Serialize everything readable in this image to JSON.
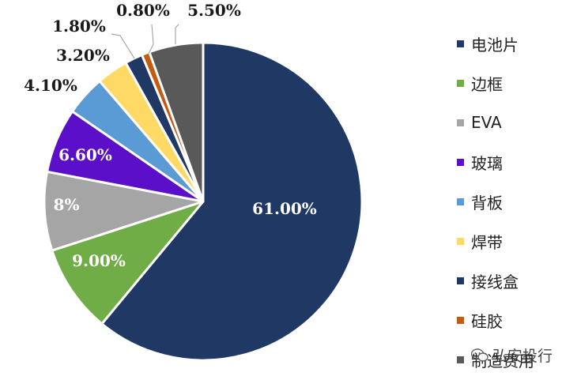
{
  "chart_data": {
    "type": "pie",
    "title": "",
    "categories": [
      "电池片",
      "边框",
      "EVA",
      "玻璃",
      "背板",
      "焊带",
      "接线盒",
      "硅胶",
      "制造费用"
    ],
    "values": [
      61.0,
      9.0,
      8.0,
      6.6,
      4.1,
      3.2,
      1.8,
      0.8,
      5.5
    ],
    "labels": [
      "61.00%",
      "9.00%",
      "8%",
      "6.60%",
      "4.10%",
      "3.20%",
      "1.80%",
      "0.80%",
      "5.50%"
    ],
    "colors": [
      "#1f3864",
      "#70ad47",
      "#a5a5a5",
      "#5b0fc9",
      "#5b9bd5",
      "#ffd966",
      "#203864",
      "#c55a11",
      "#595959"
    ],
    "start_angle_deg": 0,
    "direction": "clockwise",
    "legend_position": "right"
  },
  "watermark": {
    "text": "弘安投行",
    "icon": "wechat-icon"
  }
}
